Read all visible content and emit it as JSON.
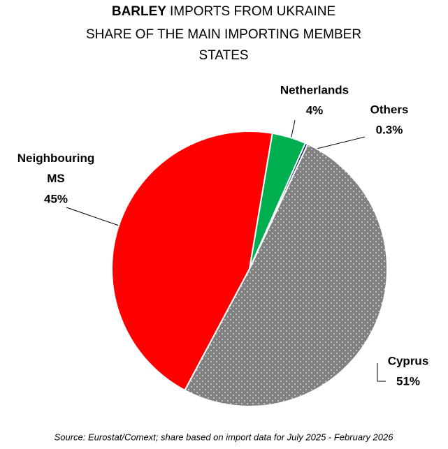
{
  "chart_data": {
    "type": "pie",
    "title": [
      "BARLEY",
      "IMPORTS FROM UKRAINE"
    ],
    "subtitle": [
      "SHARE OF THE MAIN IMPORTING MEMBER",
      "STATES"
    ],
    "categories": [
      "Cyprus",
      "Neighbouring MS",
      "Netherlands",
      "Others"
    ],
    "values": [
      51,
      45,
      4,
      0.3
    ],
    "value_labels": [
      "51%",
      "45%",
      "4%",
      "0.3%"
    ],
    "colors": [
      "#808080",
      "#ff0000",
      "#00b050",
      "#002060"
    ],
    "source": "Source: Eurostat/Comext; share based on import data for July 2025 - February 2026"
  }
}
